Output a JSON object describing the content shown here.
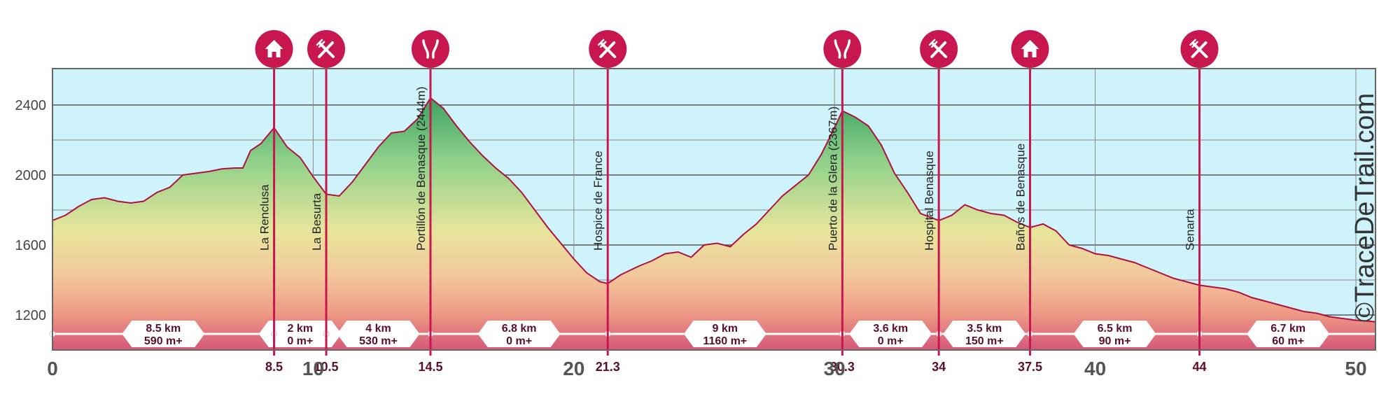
{
  "chart_data": {
    "type": "area",
    "title": "",
    "xlabel": "",
    "ylabel": "",
    "xlim": [
      0,
      50.8
    ],
    "ylim": [
      1000,
      2500
    ],
    "grid": true,
    "x_ticks": [
      0,
      10,
      20,
      30,
      40,
      50
    ],
    "y_ticks": [
      1200,
      1600,
      2000,
      2400
    ],
    "profile": {
      "x": [
        0,
        0.5,
        1,
        1.5,
        2,
        2.5,
        3,
        3.5,
        4,
        4.5,
        5,
        5.5,
        6,
        6.5,
        7,
        7.3,
        7.6,
        8,
        8.5,
        9,
        9.5,
        10,
        10.5,
        11,
        11.5,
        12,
        12.5,
        13,
        13.5,
        14,
        14.5,
        15,
        15.5,
        16,
        16.5,
        17,
        17.5,
        18,
        18.5,
        19,
        19.5,
        20,
        20.5,
        21,
        21.3,
        21.8,
        22.5,
        23,
        23.5,
        24,
        24.5,
        25,
        25.5,
        26,
        26.5,
        27,
        27.5,
        28,
        28.5,
        29,
        29.5,
        30,
        30.3,
        30.8,
        31.3,
        31.8,
        32.3,
        32.8,
        33.3,
        34,
        34.5,
        35,
        35.5,
        36,
        36.5,
        37,
        37.5,
        38,
        38.5,
        39,
        39.5,
        40,
        40.5,
        41,
        41.5,
        42,
        42.5,
        43,
        43.5,
        44,
        44.5,
        45,
        45.5,
        46,
        46.5,
        47,
        47.5,
        48,
        48.5,
        49,
        49.5,
        50,
        50.5,
        50.8
      ],
      "y": [
        1740,
        1770,
        1820,
        1860,
        1870,
        1850,
        1840,
        1850,
        1900,
        1930,
        2000,
        2010,
        2020,
        2035,
        2040,
        2040,
        2140,
        2180,
        2270,
        2160,
        2100,
        1990,
        1890,
        1880,
        1960,
        2060,
        2160,
        2240,
        2250,
        2320,
        2440,
        2380,
        2280,
        2190,
        2110,
        2040,
        1980,
        1900,
        1800,
        1700,
        1610,
        1520,
        1440,
        1390,
        1380,
        1430,
        1480,
        1510,
        1550,
        1560,
        1530,
        1600,
        1610,
        1590,
        1660,
        1720,
        1800,
        1880,
        1940,
        2000,
        2120,
        2270,
        2367,
        2330,
        2280,
        2170,
        2010,
        1900,
        1780,
        1740,
        1770,
        1830,
        1800,
        1780,
        1770,
        1730,
        1700,
        1720,
        1680,
        1600,
        1580,
        1550,
        1540,
        1520,
        1500,
        1470,
        1440,
        1410,
        1390,
        1370,
        1360,
        1350,
        1330,
        1300,
        1280,
        1260,
        1240,
        1220,
        1210,
        1190,
        1180,
        1170,
        1165,
        1160
      ]
    },
    "stops": [
      {
        "km": 8.5,
        "km_label": "8.5",
        "name": "La Renclusa",
        "icon": "house-icon"
      },
      {
        "km": 10.5,
        "km_label": "10.5",
        "name": "La Besurta",
        "icon": "cutlery-icon"
      },
      {
        "km": 14.5,
        "km_label": "14.5",
        "name": "Portillón de Benasque (2444m)",
        "icon": "mountain-pass-icon"
      },
      {
        "km": 21.3,
        "km_label": "21.3",
        "name": "Hospice de France",
        "icon": "cutlery-icon"
      },
      {
        "km": 30.3,
        "km_label": "30.3",
        "name": "Puerto de la Glera (2367m)",
        "icon": "mountain-pass-icon"
      },
      {
        "km": 34,
        "km_label": "34",
        "name": "Hospital Benasque",
        "icon": "cutlery-icon"
      },
      {
        "km": 37.5,
        "km_label": "37.5",
        "name": "Baños de Benasque",
        "icon": "house-icon"
      },
      {
        "km": 44,
        "km_label": "44",
        "name": "Senarta",
        "icon": "cutlery-icon"
      }
    ],
    "segments": [
      {
        "from": 0,
        "to": 8.5,
        "distance": "8.5 km",
        "gain": "590 m+"
      },
      {
        "from": 8.5,
        "to": 10.5,
        "distance": "2 km",
        "gain": "0 m+"
      },
      {
        "from": 10.5,
        "to": 14.5,
        "distance": "4 km",
        "gain": "530 m+"
      },
      {
        "from": 14.5,
        "to": 21.3,
        "distance": "6.8 km",
        "gain": "0 m+"
      },
      {
        "from": 21.3,
        "to": 30.3,
        "distance": "9 km",
        "gain": "1160 m+"
      },
      {
        "from": 30.3,
        "to": 34,
        "distance": "3.6 km",
        "gain": "0 m+"
      },
      {
        "from": 34,
        "to": 37.5,
        "distance": "3.5 km",
        "gain": "150 m+"
      },
      {
        "from": 37.5,
        "to": 44,
        "distance": "6.5 km",
        "gain": "90 m+"
      },
      {
        "from": 44,
        "to": 50.8,
        "distance": "6.7 km",
        "gain": "60 m+"
      }
    ]
  },
  "watermark": "©TraceDeTrail.com",
  "colors": {
    "sky": "#cef3fb",
    "accent": "#c8174f",
    "line": "#b0103f",
    "grid": "#555555",
    "band": "#ffffff",
    "gradient": [
      "#2f9a5b",
      "#8fd18a",
      "#e8e59c",
      "#f2c79b",
      "#ee9a86",
      "#d55878"
    ]
  }
}
